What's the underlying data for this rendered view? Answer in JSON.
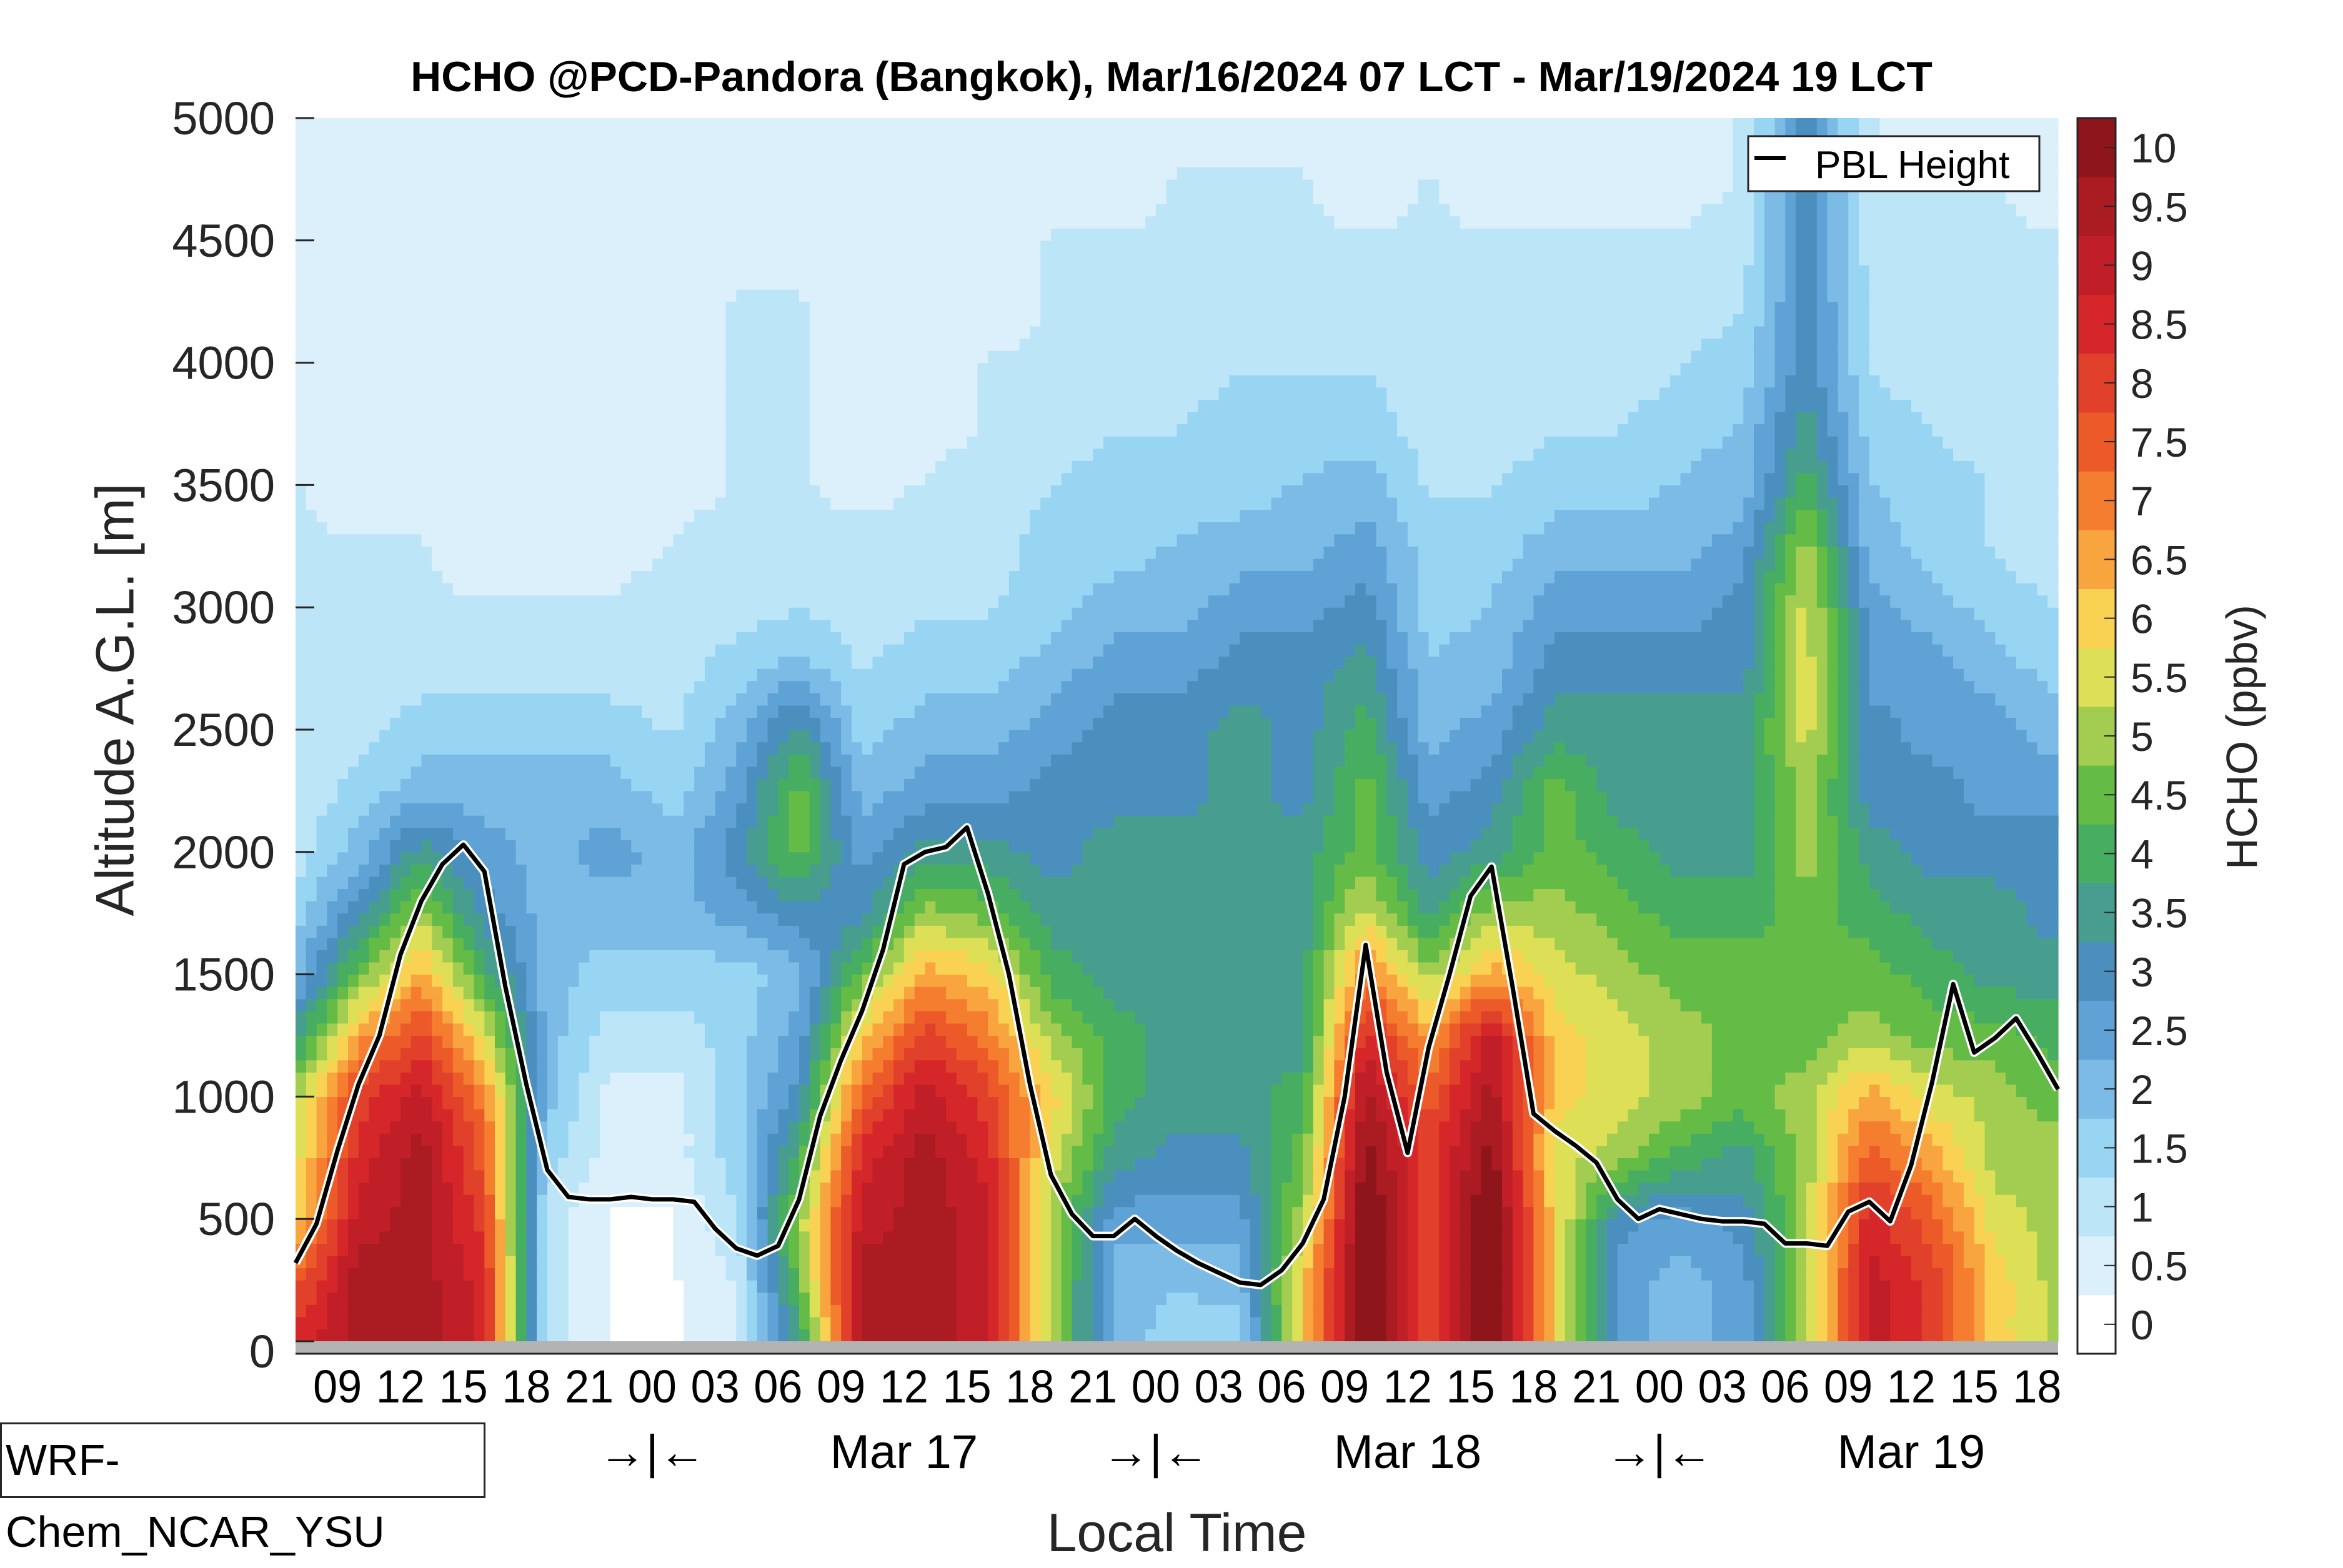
{
  "chart_data": {
    "type": "heatmap",
    "title": "HCHO @PCD-Pandora (Bangkok), Mar/16/2024 07 LCT - Mar/19/2024 19 LCT",
    "xlabel": "Local Time",
    "ylabel": "Altitude A.G.L. [m]",
    "colorbar_label": "HCHO (ppbv)",
    "model_label": "WRF-Chem_NCAR_YSU",
    "x_unit": "hours since Mar/16/2024 07 LCT",
    "xlim": [
      0,
      84
    ],
    "ylim": [
      0,
      5000
    ],
    "yticks": [
      0,
      500,
      1000,
      1500,
      2000,
      2500,
      3000,
      3500,
      4000,
      4500,
      5000
    ],
    "xticks": [
      {
        "h": 2,
        "label": "09"
      },
      {
        "h": 5,
        "label": "12"
      },
      {
        "h": 8,
        "label": "15"
      },
      {
        "h": 11,
        "label": "18"
      },
      {
        "h": 14,
        "label": "21"
      },
      {
        "h": 17,
        "label": "00"
      },
      {
        "h": 20,
        "label": "03"
      },
      {
        "h": 23,
        "label": "06"
      },
      {
        "h": 26,
        "label": "09"
      },
      {
        "h": 29,
        "label": "12"
      },
      {
        "h": 32,
        "label": "15"
      },
      {
        "h": 35,
        "label": "18"
      },
      {
        "h": 38,
        "label": "21"
      },
      {
        "h": 41,
        "label": "00"
      },
      {
        "h": 44,
        "label": "03"
      },
      {
        "h": 47,
        "label": "06"
      },
      {
        "h": 50,
        "label": "09"
      },
      {
        "h": 53,
        "label": "12"
      },
      {
        "h": 56,
        "label": "15"
      },
      {
        "h": 59,
        "label": "18"
      },
      {
        "h": 62,
        "label": "21"
      },
      {
        "h": 65,
        "label": "00"
      },
      {
        "h": 68,
        "label": "03"
      },
      {
        "h": 71,
        "label": "06"
      },
      {
        "h": 74,
        "label": "09"
      },
      {
        "h": 77,
        "label": "12"
      },
      {
        "h": 80,
        "label": "15"
      },
      {
        "h": 83,
        "label": "18"
      }
    ],
    "day_labels": [
      {
        "h": 17,
        "label": "→|←"
      },
      {
        "h": 29,
        "label": "Mar 17"
      },
      {
        "h": 41,
        "label": "→|←"
      },
      {
        "h": 53,
        "label": "Mar 18"
      },
      {
        "h": 65,
        "label": "→|←"
      },
      {
        "h": 77,
        "label": "Mar 19"
      }
    ],
    "colorbar": {
      "ticks": [
        "0",
        "0.5",
        "1",
        "1.5",
        "2",
        "2.5",
        "3",
        "3.5",
        "4",
        "4.5",
        "5",
        "5.5",
        "6",
        "6.5",
        "7",
        "7.5",
        "8",
        "8.5",
        "9",
        "9.5",
        "10"
      ],
      "colors": [
        "#ffffff",
        "#dcf0fb",
        "#bde5f8",
        "#98d5f3",
        "#7cbbe5",
        "#5fa2d5",
        "#4a8fbe",
        "#479e8f",
        "#47ae61",
        "#64bc47",
        "#a3cd50",
        "#dde057",
        "#f9d253",
        "#f8a43f",
        "#f57d2f",
        "#ec5a29",
        "#e1402a",
        "#d5262a",
        "#c11f27",
        "#aa1b22",
        "#8e161b"
      ]
    },
    "legend": {
      "label": "PBL Height",
      "position": "top-right"
    },
    "pbl_height": {
      "hours": [
        0,
        1,
        2,
        3,
        4,
        5,
        6,
        7,
        8,
        9,
        10,
        11,
        12,
        13,
        14,
        15,
        16,
        17,
        18,
        19,
        20,
        21,
        22,
        23,
        24,
        25,
        26,
        27,
        28,
        29,
        30,
        31,
        32,
        33,
        34,
        35,
        36,
        37,
        38,
        39,
        40,
        41,
        42,
        43,
        44,
        45,
        46,
        47,
        48,
        49,
        50,
        51,
        52,
        53,
        54,
        55,
        56,
        57,
        58,
        59,
        60,
        61,
        62,
        63,
        64,
        65,
        66,
        67,
        68,
        69,
        70,
        71,
        72,
        73,
        74,
        75,
        76,
        77,
        78,
        79,
        80,
        81,
        82,
        83,
        84
      ],
      "values": [
        320,
        480,
        780,
        1050,
        1250,
        1580,
        1800,
        1950,
        2030,
        1920,
        1450,
        1050,
        700,
        590,
        580,
        580,
        590,
        580,
        580,
        570,
        460,
        380,
        350,
        390,
        580,
        920,
        1150,
        1350,
        1600,
        1950,
        2000,
        2020,
        2100,
        1830,
        1500,
        1050,
        680,
        520,
        430,
        430,
        500,
        430,
        370,
        320,
        280,
        240,
        230,
        290,
        400,
        580,
        1000,
        1620,
        1100,
        770,
        1200,
        1500,
        1820,
        1940,
        1450,
        930,
        860,
        800,
        730,
        580,
        500,
        540,
        520,
        500,
        490,
        490,
        480,
        400,
        400,
        390,
        530,
        570,
        490,
        720,
        1060,
        1460,
        1180,
        1240,
        1320,
        1180,
        1030
      ]
    },
    "field": {
      "hours": [
        0,
        3,
        6,
        9,
        12,
        15,
        18,
        21,
        24,
        27,
        30,
        33,
        36,
        39,
        42,
        45,
        48,
        51,
        54,
        57,
        60,
        63,
        66,
        69,
        72,
        75,
        78,
        81,
        84
      ],
      "altitudes": [
        0,
        250,
        500,
        750,
        1000,
        1250,
        1500,
        1750,
        2000,
        2250,
        2500,
        2750,
        3000,
        3250,
        3500,
        3750,
        4000,
        4250,
        4500,
        4750,
        5000
      ],
      "values": [
        [
          8.5,
          9.5,
          9.5,
          8.5,
          1.0,
          0.2,
          0.2,
          0.5,
          3.5,
          9.5,
          9.5,
          9.0,
          5.0,
          2.0,
          1.5,
          1.5,
          6.0,
          10.5,
          8.0,
          10.5,
          6.0,
          2.5,
          2.0,
          2.5,
          5.0,
          9.0,
          8.0,
          6.0,
          5.0
        ],
        [
          7.5,
          9.5,
          9.5,
          8.5,
          1.0,
          0.2,
          0.2,
          0.8,
          4.5,
          9.5,
          9.5,
          9.0,
          5.0,
          2.0,
          1.8,
          2.0,
          6.0,
          10.5,
          8.0,
          10.5,
          6.0,
          2.5,
          2.0,
          2.5,
          5.0,
          9.0,
          8.0,
          6.0,
          5.0
        ],
        [
          6.0,
          9.0,
          9.5,
          8.0,
          1.0,
          0.2,
          0.2,
          1.2,
          5.0,
          9.0,
          9.5,
          9.0,
          5.0,
          2.5,
          2.5,
          2.5,
          5.0,
          10.5,
          8.0,
          10.5,
          6.0,
          3.0,
          2.5,
          3.0,
          5.0,
          8.5,
          7.5,
          5.5,
          5.0
        ],
        [
          5.5,
          8.5,
          9.5,
          7.5,
          1.5,
          0.5,
          0.5,
          1.5,
          4.0,
          8.5,
          9.5,
          8.5,
          5.5,
          3.5,
          3.0,
          3.0,
          4.5,
          10.0,
          8.0,
          10.0,
          5.5,
          5.0,
          4.0,
          3.5,
          5.0,
          7.5,
          6.5,
          5.0,
          5.0
        ],
        [
          5.0,
          8.0,
          9.0,
          7.0,
          2.0,
          0.5,
          0.5,
          1.5,
          3.0,
          7.5,
          9.0,
          8.0,
          6.0,
          4.0,
          3.5,
          3.5,
          4.0,
          9.5,
          7.5,
          9.5,
          6.0,
          5.5,
          5.0,
          4.5,
          5.0,
          6.5,
          5.5,
          5.0,
          4.5
        ],
        [
          3.5,
          6.5,
          8.0,
          5.5,
          2.0,
          1.0,
          1.0,
          1.5,
          2.5,
          6.0,
          8.0,
          7.0,
          5.0,
          4.0,
          3.5,
          3.5,
          3.5,
          8.5,
          6.5,
          9.0,
          6.0,
          5.5,
          5.0,
          4.5,
          4.5,
          5.0,
          4.5,
          4.5,
          4.0
        ],
        [
          2.0,
          4.5,
          6.5,
          4.0,
          2.0,
          1.5,
          1.5,
          1.5,
          2.0,
          4.5,
          6.5,
          6.0,
          4.0,
          3.5,
          3.5,
          3.5,
          3.5,
          7.0,
          5.0,
          6.5,
          5.5,
          5.0,
          4.5,
          4.5,
          4.5,
          4.5,
          4.0,
          3.5,
          3.5
        ],
        [
          1.5,
          3.0,
          5.0,
          3.0,
          2.0,
          2.0,
          2.0,
          2.5,
          3.0,
          3.0,
          5.0,
          4.5,
          3.5,
          3.5,
          3.5,
          3.5,
          3.5,
          5.5,
          3.5,
          5.0,
          5.0,
          4.5,
          4.0,
          4.0,
          4.5,
          4.0,
          3.5,
          3.5,
          3.0
        ],
        [
          1.0,
          2.0,
          3.5,
          2.5,
          2.0,
          2.5,
          2.0,
          3.0,
          4.5,
          2.5,
          3.5,
          3.5,
          3.0,
          3.5,
          3.5,
          3.5,
          3.5,
          4.5,
          3.0,
          3.5,
          4.5,
          4.0,
          3.5,
          3.5,
          5.0,
          3.5,
          3.0,
          3.0,
          3.0
        ],
        [
          0.8,
          1.5,
          2.0,
          2.0,
          2.0,
          2.0,
          1.5,
          2.5,
          4.5,
          2.0,
          2.5,
          2.5,
          3.0,
          3.0,
          3.0,
          3.5,
          3.0,
          4.5,
          2.5,
          3.0,
          4.5,
          3.5,
          3.5,
          3.5,
          5.0,
          3.0,
          3.0,
          2.5,
          2.5
        ],
        [
          0.8,
          1.0,
          1.5,
          1.5,
          1.5,
          1.5,
          1.2,
          2.0,
          3.5,
          1.5,
          2.0,
          2.0,
          2.5,
          3.0,
          3.0,
          3.5,
          3.0,
          4.0,
          2.0,
          2.5,
          3.5,
          3.5,
          3.5,
          3.5,
          5.5,
          3.0,
          2.5,
          2.5,
          2.0
        ],
        [
          0.8,
          1.0,
          1.0,
          1.0,
          1.0,
          1.0,
          1.0,
          1.5,
          2.0,
          1.2,
          1.5,
          1.5,
          2.0,
          2.5,
          2.5,
          3.0,
          3.0,
          3.5,
          1.8,
          2.0,
          3.0,
          3.0,
          3.0,
          3.0,
          5.5,
          2.5,
          2.5,
          2.0,
          1.5
        ],
        [
          0.8,
          0.8,
          0.8,
          0.8,
          0.8,
          0.8,
          1.0,
          1.0,
          1.2,
          1.0,
          1.2,
          1.2,
          1.5,
          2.0,
          2.0,
          2.5,
          2.5,
          3.0,
          1.5,
          1.8,
          2.5,
          2.5,
          2.5,
          3.0,
          5.5,
          2.5,
          2.0,
          1.5,
          1.2
        ],
        [
          0.8,
          0.8,
          0.8,
          0.5,
          0.5,
          0.5,
          0.8,
          1.0,
          1.0,
          1.0,
          1.0,
          1.0,
          1.5,
          1.5,
          1.8,
          2.0,
          2.0,
          2.5,
          1.5,
          1.5,
          2.0,
          2.0,
          2.0,
          2.5,
          5.0,
          2.0,
          1.5,
          1.2,
          1.0
        ],
        [
          0.8,
          0.5,
          0.5,
          0.5,
          0.5,
          0.5,
          0.5,
          0.8,
          0.8,
          0.5,
          0.8,
          1.0,
          1.2,
          1.5,
          1.5,
          1.5,
          1.8,
          2.0,
          1.2,
          1.2,
          1.5,
          1.5,
          1.8,
          2.0,
          4.0,
          1.8,
          1.5,
          1.2,
          1.0
        ],
        [
          0.5,
          0.5,
          0.5,
          0.5,
          0.5,
          0.5,
          0.5,
          0.8,
          0.8,
          0.5,
          0.5,
          0.8,
          1.0,
          1.2,
          1.2,
          1.5,
          1.5,
          1.5,
          1.0,
          1.0,
          1.2,
          1.2,
          1.5,
          1.8,
          3.5,
          1.5,
          1.2,
          1.0,
          1.0
        ],
        [
          0.5,
          0.5,
          0.5,
          0.5,
          0.5,
          0.5,
          0.5,
          0.8,
          0.8,
          0.5,
          0.5,
          0.8,
          0.8,
          1.0,
          1.0,
          1.2,
          1.2,
          1.2,
          1.0,
          1.0,
          1.0,
          1.0,
          1.2,
          1.5,
          3.0,
          1.2,
          1.0,
          1.0,
          0.8
        ],
        [
          0.5,
          0.5,
          0.5,
          0.5,
          0.5,
          0.5,
          0.5,
          0.8,
          0.8,
          0.5,
          0.5,
          0.5,
          0.8,
          0.8,
          1.0,
          1.0,
          1.0,
          1.0,
          0.8,
          0.8,
          0.8,
          1.0,
          1.0,
          1.2,
          3.0,
          1.2,
          1.0,
          0.8,
          0.8
        ],
        [
          0.5,
          0.5,
          0.5,
          0.5,
          0.5,
          0.5,
          0.5,
          0.5,
          0.5,
          0.5,
          0.5,
          0.5,
          0.8,
          0.8,
          0.8,
          0.8,
          0.8,
          0.8,
          0.8,
          0.8,
          0.8,
          0.8,
          0.8,
          1.0,
          3.0,
          1.0,
          0.8,
          0.8,
          0.8
        ],
        [
          0.5,
          0.5,
          0.3,
          0.3,
          0.5,
          0.5,
          0.5,
          0.5,
          0.5,
          0.5,
          0.5,
          0.5,
          0.5,
          0.5,
          0.8,
          0.8,
          0.8,
          0.5,
          0.8,
          0.5,
          0.5,
          0.5,
          0.5,
          0.8,
          3.0,
          0.8,
          0.8,
          0.8,
          0.5
        ],
        [
          0.5,
          0.5,
          0.3,
          0.3,
          0.3,
          0.3,
          0.3,
          0.5,
          0.5,
          0.3,
          0.3,
          0.5,
          0.5,
          0.5,
          0.5,
          0.5,
          0.5,
          0.5,
          0.5,
          0.5,
          0.5,
          0.5,
          0.5,
          0.8,
          3.0,
          0.8,
          0.5,
          0.5,
          0.5
        ]
      ]
    }
  }
}
